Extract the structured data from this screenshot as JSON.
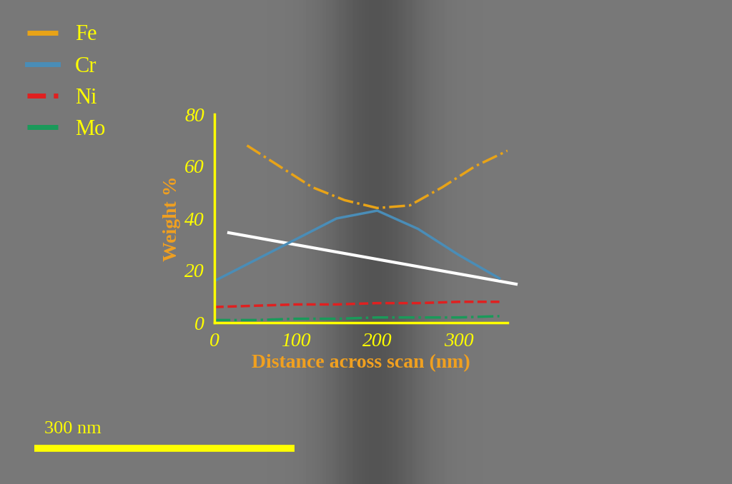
{
  "chart_data": {
    "type": "line",
    "x_label": "Distance across scan (nm)",
    "y_label": "Weight %",
    "scale_bar": "300 nm",
    "xlim": [
      0,
      360
    ],
    "xticks": [
      0,
      100,
      200,
      300
    ],
    "ylim": [
      0,
      80
    ],
    "yticks": [
      0,
      20,
      40,
      60,
      80
    ],
    "legend": "upper left",
    "series": [
      {
        "name": "Fe",
        "color": "#e8a317",
        "line_style": "dashdot",
        "x": [
          40,
          80,
          120,
          160,
          200,
          240,
          280,
          320,
          360
        ],
        "values": [
          68,
          60,
          52,
          47,
          44,
          45,
          52,
          60,
          66
        ]
      },
      {
        "name": "Cr",
        "color": "#4a8db7",
        "line_style": "solid",
        "x": [
          0,
          50,
          100,
          150,
          200,
          250,
          300,
          350
        ],
        "values": [
          16,
          24,
          32,
          40,
          43,
          36,
          26,
          17
        ]
      },
      {
        "name": "Ni",
        "color": "#e02020",
        "line_style": "dashed",
        "x": [
          0,
          50,
          100,
          150,
          200,
          250,
          300,
          350
        ],
        "values": [
          6,
          6.5,
          7,
          7,
          7.5,
          7.5,
          8,
          8
        ]
      },
      {
        "name": "Mo",
        "color": "#1a9a5a",
        "line_style": "dashdot",
        "x": [
          0,
          50,
          100,
          150,
          200,
          250,
          300,
          350
        ],
        "values": [
          1,
          1,
          1.5,
          1.5,
          2,
          2,
          2,
          2.5
        ]
      }
    ]
  }
}
